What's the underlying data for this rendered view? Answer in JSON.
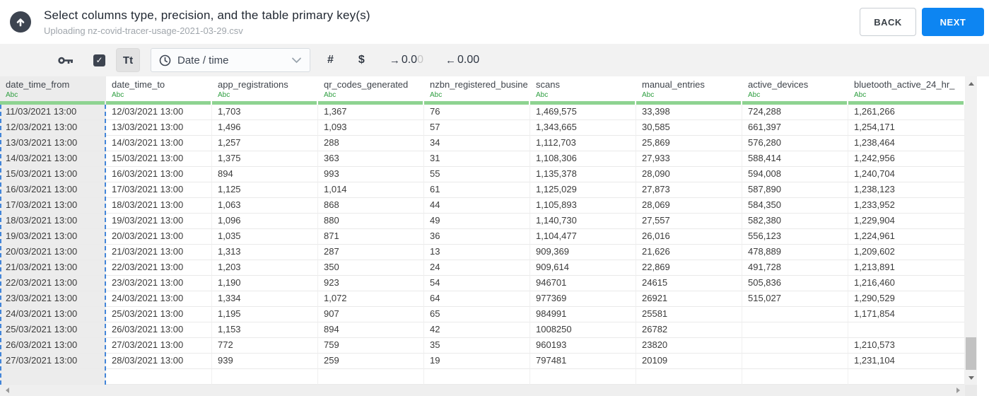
{
  "header": {
    "title": "Select columns type, precision, and the table primary key(s)",
    "subtitle": "Uploading nz-covid-tracer-usage-2021-03-29.csv",
    "back_label": "BACK",
    "next_label": "NEXT"
  },
  "toolbar": {
    "checkbox_checked": true,
    "checkbox_glyph": "✓",
    "text_button_label": "Tt",
    "type_dropdown_value": "Date / time",
    "number_label": "#",
    "currency_label": "$",
    "decimal_right": {
      "arrow": "→",
      "value": "0.0",
      "faded": "0"
    },
    "decimal_left": {
      "arrow": "←",
      "value": "0.00"
    }
  },
  "table": {
    "columns": [
      {
        "name": "date_time_from",
        "type": "Abc",
        "selected": true
      },
      {
        "name": "date_time_to",
        "type": "Abc",
        "selected": false
      },
      {
        "name": "app_registrations",
        "type": "Abc",
        "selected": false
      },
      {
        "name": "qr_codes_generated",
        "type": "Abc",
        "selected": false
      },
      {
        "name": "nzbn_registered_busine",
        "type": "Abc",
        "selected": false
      },
      {
        "name": "scans",
        "type": "Abc",
        "selected": false
      },
      {
        "name": "manual_entries",
        "type": "Abc",
        "selected": false
      },
      {
        "name": "active_devices",
        "type": "Abc",
        "selected": false
      },
      {
        "name": "bluetooth_active_24_hr_",
        "type": "Abc",
        "selected": false
      }
    ],
    "rows": [
      [
        "11/03/2021 13:00",
        "12/03/2021 13:00",
        "1,703",
        "1,367",
        "76",
        "1,469,575",
        "33,398",
        "724,288",
        "1,261,266"
      ],
      [
        "12/03/2021 13:00",
        "13/03/2021 13:00",
        "1,496",
        "1,093",
        "57",
        "1,343,665",
        "30,585",
        "661,397",
        "1,254,171"
      ],
      [
        "13/03/2021 13:00",
        "14/03/2021 13:00",
        "1,257",
        "288",
        "34",
        "1,112,703",
        "25,869",
        "576,280",
        "1,238,464"
      ],
      [
        "14/03/2021 13:00",
        "15/03/2021 13:00",
        "1,375",
        "363",
        "31",
        "1,108,306",
        "27,933",
        "588,414",
        "1,242,956"
      ],
      [
        "15/03/2021 13:00",
        "16/03/2021 13:00",
        "894",
        "993",
        "55",
        "1,135,378",
        "28,090",
        "594,008",
        "1,240,704"
      ],
      [
        "16/03/2021 13:00",
        "17/03/2021 13:00",
        "1,125",
        "1,014",
        "61",
        "1,125,029",
        "27,873",
        "587,890",
        "1,238,123"
      ],
      [
        "17/03/2021 13:00",
        "18/03/2021 13:00",
        "1,063",
        "868",
        "44",
        "1,105,893",
        "28,069",
        "584,350",
        "1,233,952"
      ],
      [
        "18/03/2021 13:00",
        "19/03/2021 13:00",
        "1,096",
        "880",
        "49",
        "1,140,730",
        "27,557",
        "582,380",
        "1,229,904"
      ],
      [
        "19/03/2021 13:00",
        "20/03/2021 13:00",
        "1,035",
        "871",
        "36",
        "1,104,477",
        "26,016",
        "556,123",
        "1,224,961"
      ],
      [
        "20/03/2021 13:00",
        "21/03/2021 13:00",
        "1,313",
        "287",
        "13",
        "909,369",
        "21,626",
        "478,889",
        "1,209,602"
      ],
      [
        "21/03/2021 13:00",
        "22/03/2021 13:00",
        "1,203",
        "350",
        "24",
        "909,614",
        "22,869",
        "491,728",
        "1,213,891"
      ],
      [
        "22/03/2021 13:00",
        "23/03/2021 13:00",
        "1,190",
        "923",
        "54",
        "946701",
        "24615",
        "505,836",
        "1,216,460"
      ],
      [
        "23/03/2021 13:00",
        "24/03/2021 13:00",
        "1,334",
        "1,072",
        "64",
        "977369",
        "26921",
        "515,027",
        "1,290,529"
      ],
      [
        "24/03/2021 13:00",
        "25/03/2021 13:00",
        "1,195",
        "907",
        "65",
        "984991",
        "25581",
        "",
        "1,171,854"
      ],
      [
        "25/03/2021 13:00",
        "26/03/2021 13:00",
        "1,153",
        "894",
        "42",
        "1008250",
        "26782",
        "",
        ""
      ],
      [
        "26/03/2021 13:00",
        "27/03/2021 13:00",
        "772",
        "759",
        "35",
        "960193",
        "23820",
        "",
        "1,210,573"
      ],
      [
        "27/03/2021 13:00",
        "28/03/2021 13:00",
        "939",
        "259",
        "19",
        "797481",
        "20109",
        "",
        "1,231,104"
      ]
    ]
  },
  "colors": {
    "accent_blue": "#0d85f2",
    "type_label_green": "#2e9e40",
    "header_underline_green": "#8ed391",
    "selected_column_border": "#4385d8",
    "selected_column_bg": "#ececec",
    "dark_icon": "#3d4450"
  }
}
